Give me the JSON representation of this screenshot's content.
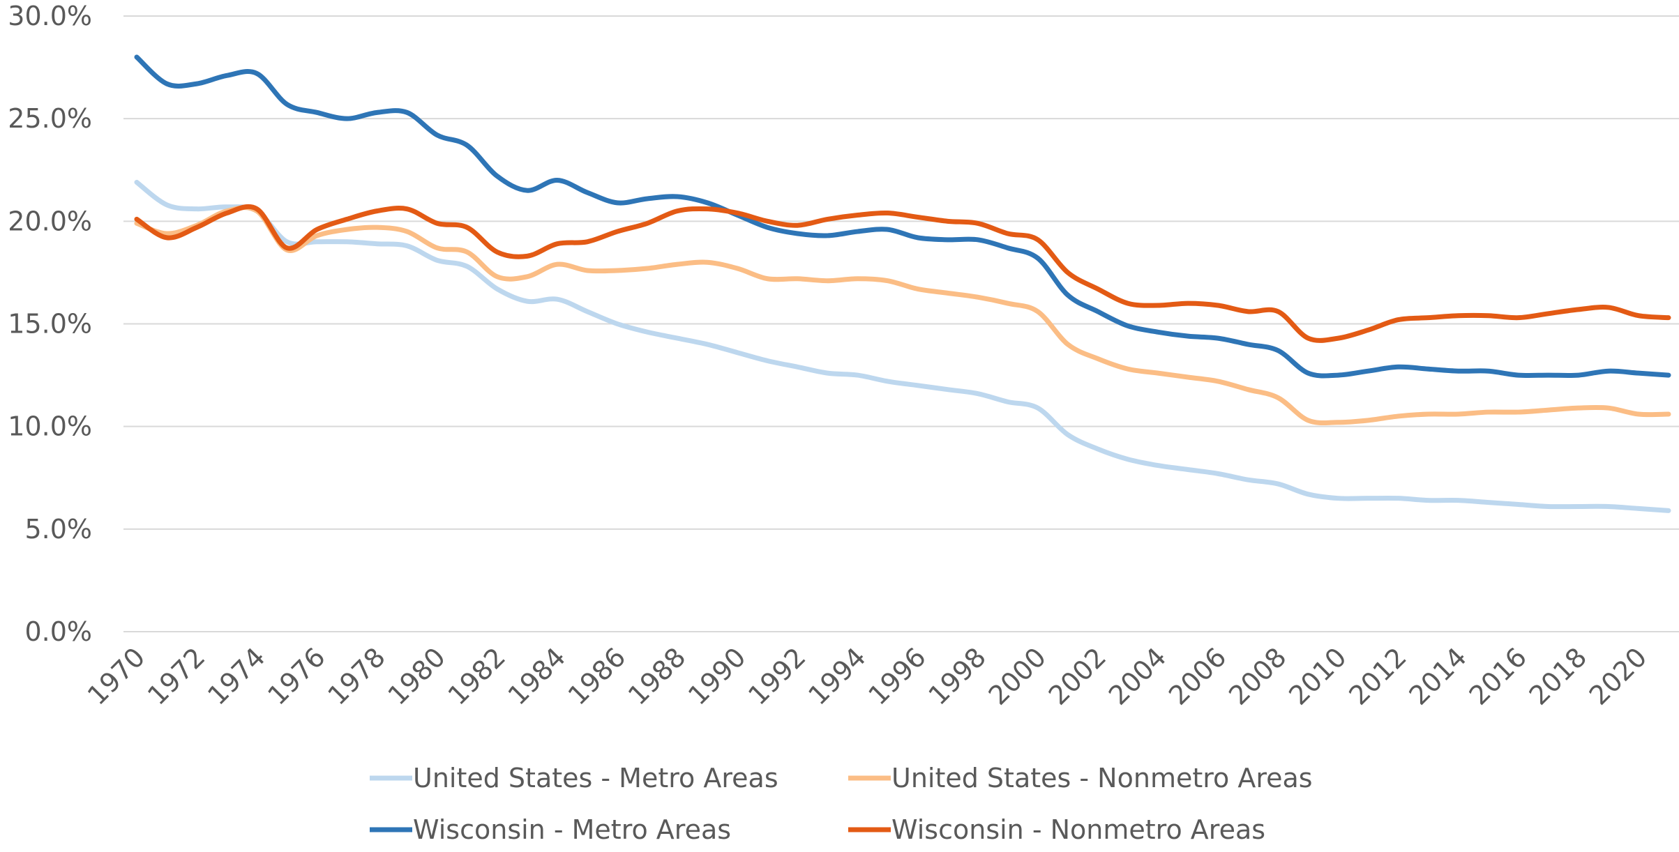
{
  "chart_data": {
    "type": "line",
    "categories": [
      "1970",
      null,
      "1972",
      null,
      "1974",
      null,
      "1976",
      null,
      "1978",
      null,
      "1980",
      null,
      "1982",
      null,
      "1984",
      null,
      "1986",
      null,
      "1988",
      null,
      "1990",
      null,
      "1992",
      null,
      "1994",
      null,
      "1996",
      null,
      "1998",
      null,
      "2000",
      null,
      "2002",
      null,
      "2004",
      null,
      "2006",
      null,
      "2008",
      null,
      "2010",
      null,
      "2012",
      null,
      "2014",
      null,
      "2016",
      null,
      "2018",
      null,
      "2020",
      null
    ],
    "series": [
      {
        "name": "United States - Metro Areas",
        "color": "#bdd7ee",
        "values": [
          21.9,
          20.8,
          20.6,
          20.7,
          20.5,
          19.0,
          19.0,
          19.0,
          18.9,
          18.8,
          18.1,
          17.8,
          16.7,
          16.1,
          16.2,
          15.6,
          15.0,
          14.6,
          14.3,
          14.0,
          13.6,
          13.2,
          12.9,
          12.6,
          12.5,
          12.2,
          12.0,
          11.8,
          11.6,
          11.2,
          10.9,
          9.6,
          8.9,
          8.4,
          8.1,
          7.9,
          7.7,
          7.4,
          7.2,
          6.7,
          6.5,
          6.5,
          6.5,
          6.4,
          6.4,
          6.3,
          6.2,
          6.1,
          6.1,
          6.1,
          6.0,
          5.9
        ]
      },
      {
        "name": "United States - Nonmetro Areas",
        "color": "#fbbd85",
        "values": [
          19.9,
          19.4,
          19.8,
          20.5,
          20.5,
          18.6,
          19.3,
          19.6,
          19.7,
          19.5,
          18.7,
          18.5,
          17.3,
          17.3,
          17.9,
          17.6,
          17.6,
          17.7,
          17.9,
          18.0,
          17.7,
          17.2,
          17.2,
          17.1,
          17.2,
          17.1,
          16.7,
          16.5,
          16.3,
          16.0,
          15.6,
          14.0,
          13.3,
          12.8,
          12.6,
          12.4,
          12.2,
          11.8,
          11.4,
          10.3,
          10.2,
          10.3,
          10.5,
          10.6,
          10.6,
          10.7,
          10.7,
          10.8,
          10.9,
          10.9,
          10.6,
          10.6
        ]
      },
      {
        "name": "Wisconsin - Metro Areas",
        "color": "#2e75b6",
        "values": [
          28.0,
          26.7,
          26.7,
          27.1,
          27.2,
          25.7,
          25.3,
          25.0,
          25.3,
          25.3,
          24.2,
          23.7,
          22.2,
          21.5,
          22.0,
          21.4,
          20.9,
          21.1,
          21.2,
          20.9,
          20.3,
          19.7,
          19.4,
          19.3,
          19.5,
          19.6,
          19.2,
          19.1,
          19.1,
          18.7,
          18.2,
          16.4,
          15.6,
          14.9,
          14.6,
          14.4,
          14.3,
          14.0,
          13.7,
          12.6,
          12.5,
          12.7,
          12.9,
          12.8,
          12.7,
          12.7,
          12.5,
          12.5,
          12.5,
          12.7,
          12.6,
          12.5
        ]
      },
      {
        "name": "Wisconsin - Nonmetro Areas",
        "color": "#e35a14",
        "values": [
          20.1,
          19.2,
          19.7,
          20.4,
          20.6,
          18.7,
          19.6,
          20.1,
          20.5,
          20.6,
          19.9,
          19.7,
          18.5,
          18.3,
          18.9,
          19.0,
          19.5,
          19.9,
          20.5,
          20.6,
          20.4,
          20.0,
          19.8,
          20.1,
          20.3,
          20.4,
          20.2,
          20.0,
          19.9,
          19.4,
          19.1,
          17.5,
          16.7,
          16.0,
          15.9,
          16.0,
          15.9,
          15.6,
          15.6,
          14.3,
          14.3,
          14.7,
          15.2,
          15.3,
          15.4,
          15.4,
          15.3,
          15.5,
          15.7,
          15.8,
          15.4,
          15.3
        ]
      }
    ],
    "ylim": [
      0,
      30
    ],
    "yticks": [
      {
        "value": 0,
        "label": "0.0%"
      },
      {
        "value": 5,
        "label": "5.0%"
      },
      {
        "value": 10,
        "label": "10.0%"
      },
      {
        "value": 15,
        "label": "15.0%"
      },
      {
        "value": 20,
        "label": "20.0%"
      },
      {
        "value": 25,
        "label": "25.0%"
      },
      {
        "value": 30,
        "label": "30.0%"
      }
    ],
    "grid": true,
    "legend": "bottom"
  }
}
